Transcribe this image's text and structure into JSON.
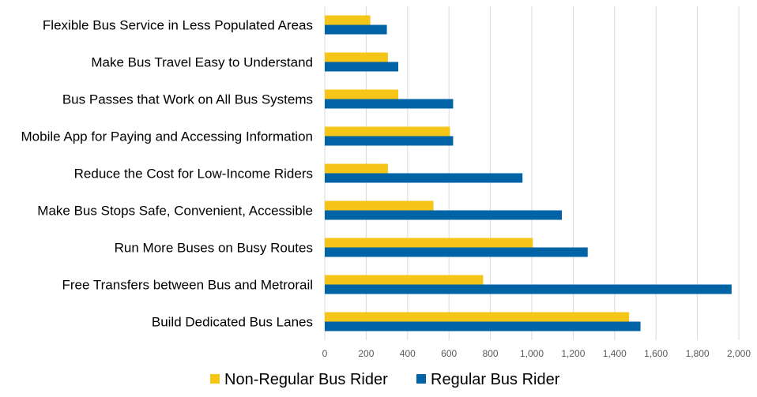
{
  "chart_data": {
    "type": "bar",
    "orientation": "horizontal",
    "categories": [
      "Flexible Bus Service in Less Populated Areas",
      "Make Bus Travel Easy to Understand",
      "Bus Passes that Work on All Bus Systems",
      "Mobile App for Paying and Accessing Information",
      "Reduce the Cost for Low-Income Riders",
      "Make Bus Stops Safe, Convenient, Accessible",
      "Run More Buses on Busy Routes",
      "Free Transfers between Bus and Metrorail",
      "Build Dedicated Bus Lanes"
    ],
    "series": [
      {
        "name": "Non-Regular Bus Rider",
        "color": "#f5c518",
        "values": [
          220,
          305,
          355,
          605,
          305,
          525,
          1005,
          765,
          1470
        ]
      },
      {
        "name": "Regular Bus Rider",
        "color": "#0063a6",
        "values": [
          300,
          355,
          620,
          620,
          955,
          1145,
          1270,
          1965,
          1525
        ]
      }
    ],
    "xlim": [
      0,
      2000
    ],
    "xticks": [
      "0",
      "200",
      "400",
      "600",
      "800",
      "1,000",
      "1,200",
      "1,400",
      "1,600",
      "1,800",
      "2,000"
    ],
    "grid": "vertical",
    "legend_position": "bottom"
  }
}
